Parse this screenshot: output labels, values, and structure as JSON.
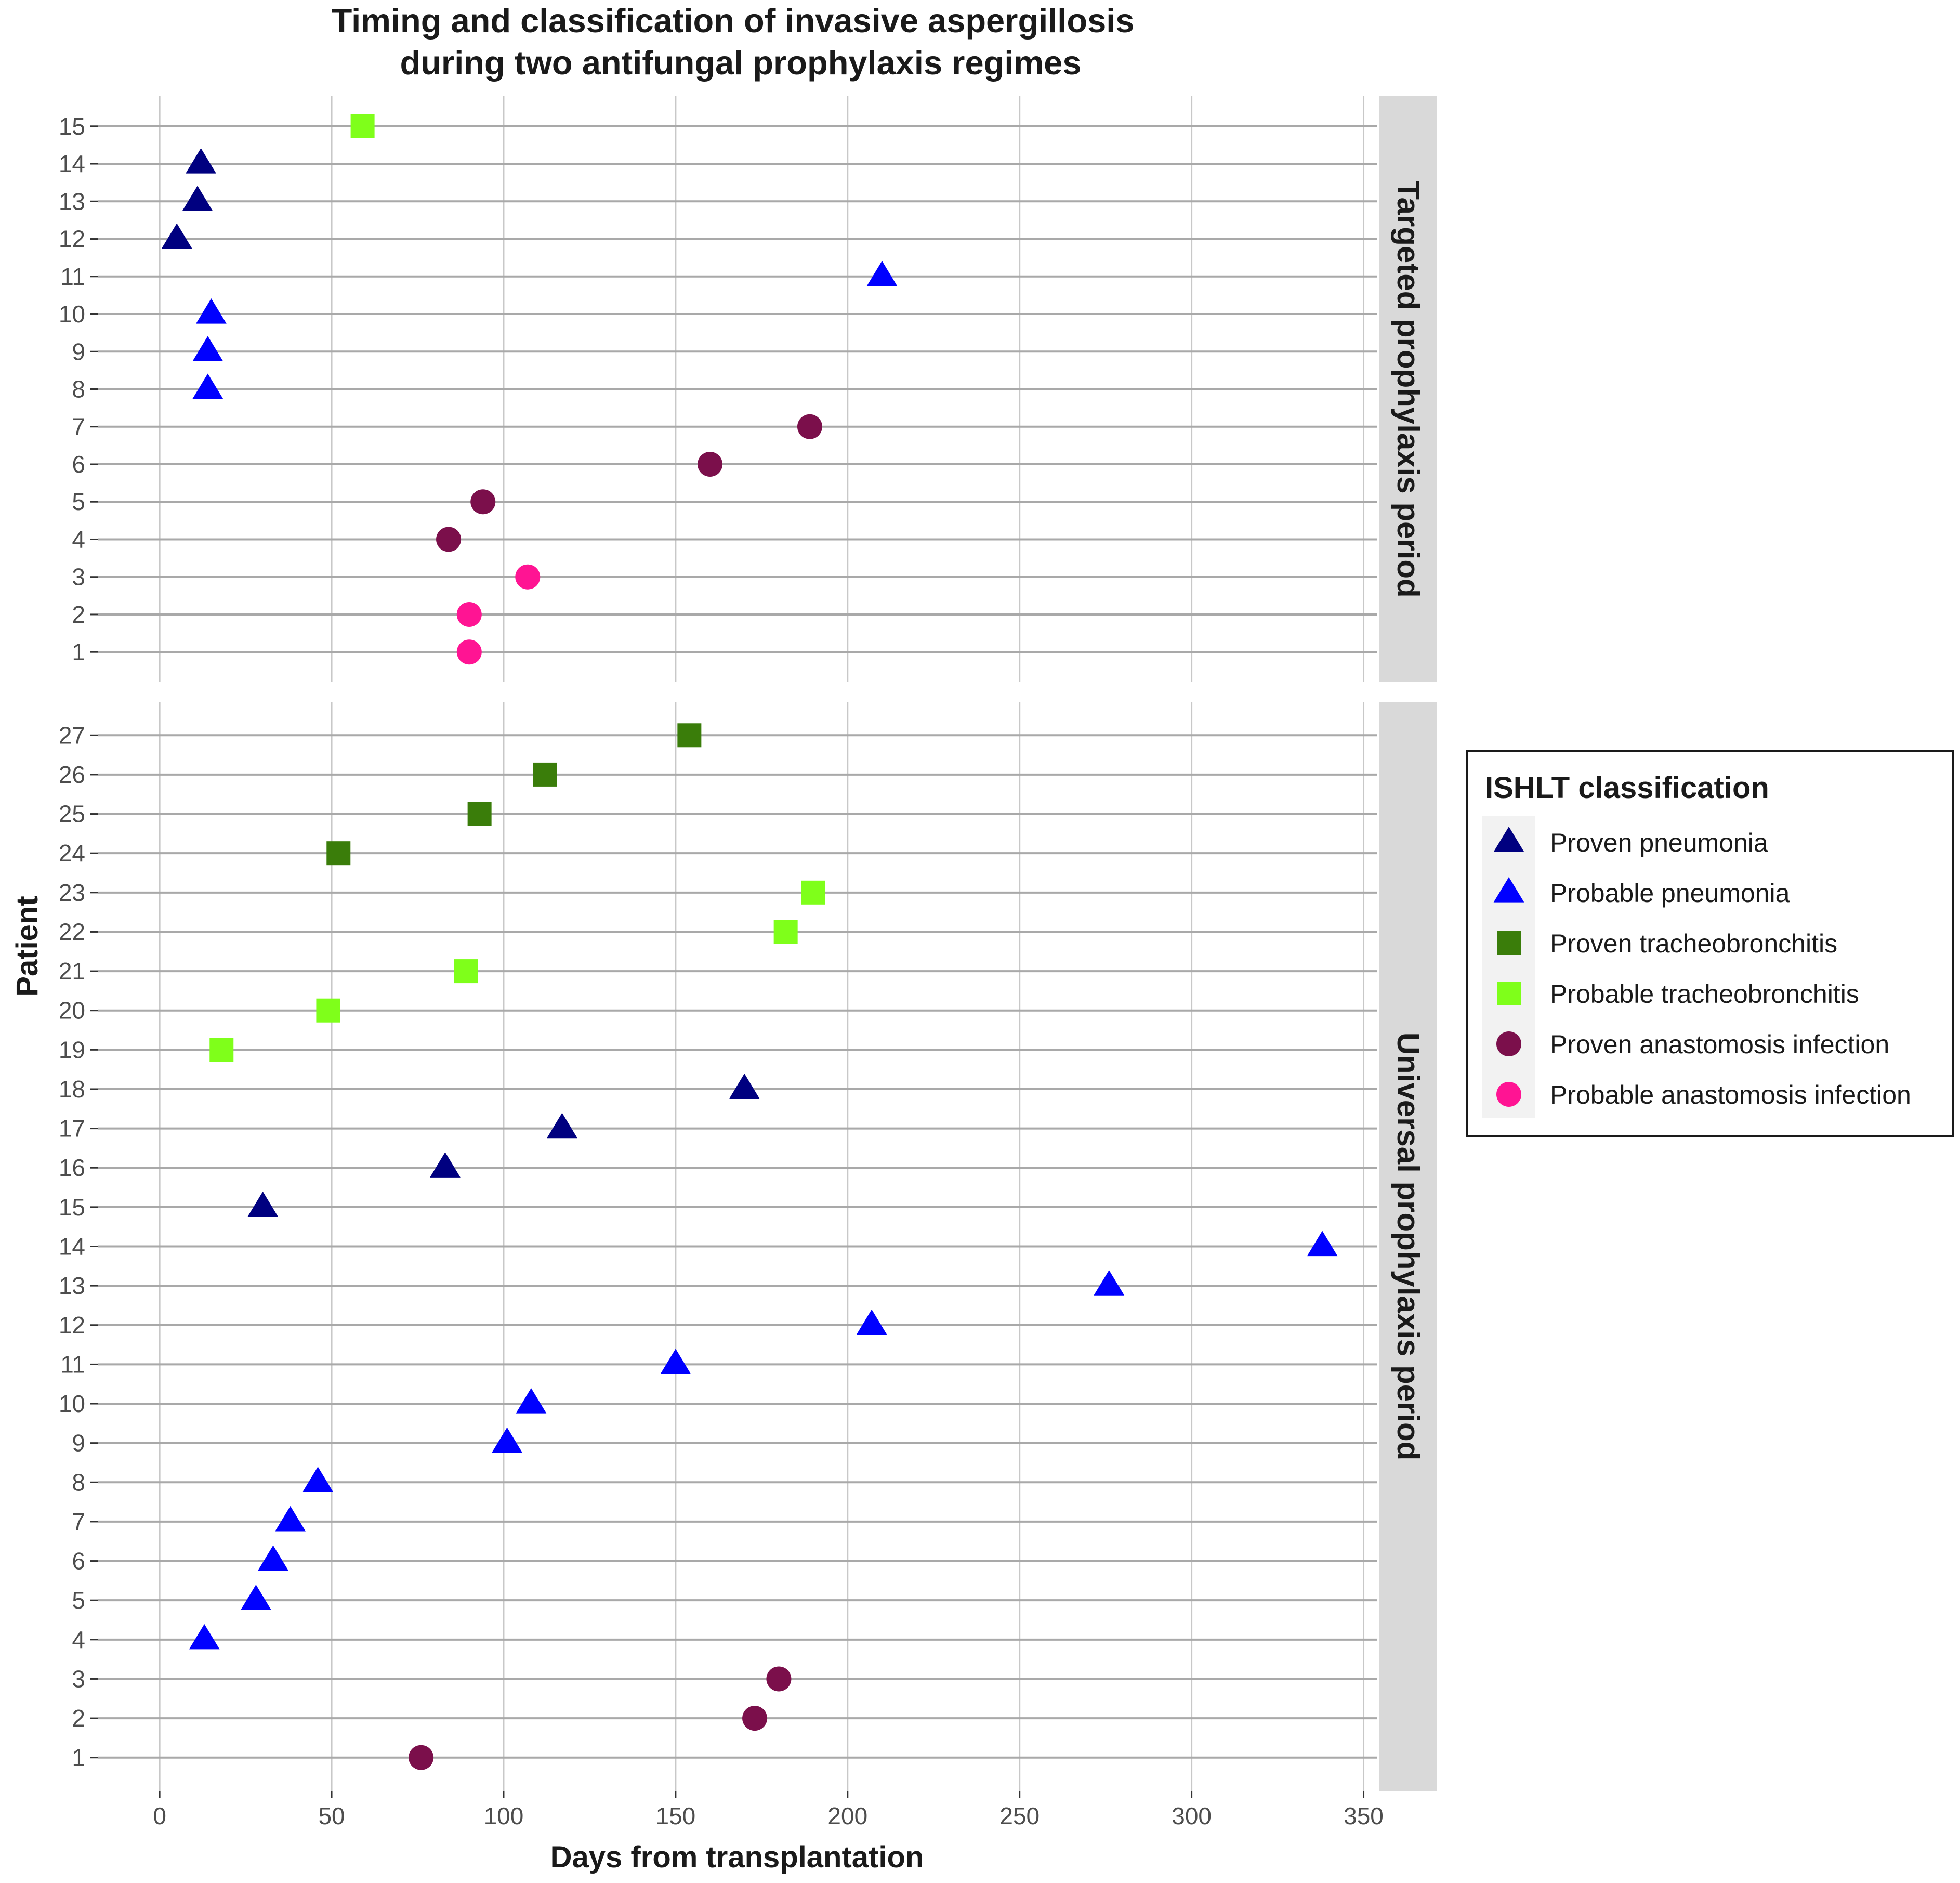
{
  "chart_data": {
    "type": "scatter",
    "title_line1": "Timing and classification of invasive aspergillosis",
    "title_line2": "during two antifungal prophylaxis regimes",
    "xlabel": "Days from transplantation",
    "ylabel": "Patient",
    "xlim": [
      -18,
      354
    ],
    "x_ticks": [
      0,
      50,
      100,
      150,
      200,
      250,
      300,
      350
    ],
    "legend": {
      "title": "ISHLT classification",
      "position": "right",
      "entries": [
        {
          "name": "Proven pneumonia",
          "color": "#000080",
          "shape": "triangle"
        },
        {
          "name": "Probable pneumonia",
          "color": "#0000ff",
          "shape": "triangle"
        },
        {
          "name": "Proven tracheobronchitis",
          "color": "#3a7d0a",
          "shape": "square"
        },
        {
          "name": "Probable tracheobronchitis",
          "color": "#7fff1a",
          "shape": "square"
        },
        {
          "name": "Proven anastomosis infection",
          "color": "#7b0f4b",
          "shape": "circle"
        },
        {
          "name": "Probable anastomosis infection",
          "color": "#ff1493",
          "shape": "circle"
        }
      ]
    },
    "panels": [
      {
        "strip": "Targeted prophylaxis period",
        "ylim": [
          0.2,
          15.8
        ],
        "y_ticks": [
          1,
          2,
          3,
          4,
          5,
          6,
          7,
          8,
          9,
          10,
          11,
          12,
          13,
          14,
          15
        ],
        "points": [
          {
            "patient": 1,
            "day": 90,
            "class": "Probable anastomosis infection"
          },
          {
            "patient": 2,
            "day": 90,
            "class": "Probable anastomosis infection"
          },
          {
            "patient": 3,
            "day": 107,
            "class": "Probable anastomosis infection"
          },
          {
            "patient": 4,
            "day": 84,
            "class": "Proven anastomosis infection"
          },
          {
            "patient": 5,
            "day": 94,
            "class": "Proven anastomosis infection"
          },
          {
            "patient": 6,
            "day": 160,
            "class": "Proven anastomosis infection"
          },
          {
            "patient": 7,
            "day": 189,
            "class": "Proven anastomosis infection"
          },
          {
            "patient": 8,
            "day": 14,
            "class": "Probable pneumonia"
          },
          {
            "patient": 9,
            "day": 14,
            "class": "Probable pneumonia"
          },
          {
            "patient": 10,
            "day": 15,
            "class": "Probable pneumonia"
          },
          {
            "patient": 11,
            "day": 210,
            "class": "Probable pneumonia"
          },
          {
            "patient": 12,
            "day": 5,
            "class": "Proven pneumonia"
          },
          {
            "patient": 13,
            "day": 11,
            "class": "Proven pneumonia"
          },
          {
            "patient": 14,
            "day": 12,
            "class": "Proven pneumonia"
          },
          {
            "patient": 15,
            "day": 59,
            "class": "Probable tracheobronchitis"
          }
        ]
      },
      {
        "strip": "Universal prophylaxis period",
        "ylim": [
          0.15,
          27.85
        ],
        "y_ticks": [
          1,
          2,
          3,
          4,
          5,
          6,
          7,
          8,
          9,
          10,
          11,
          12,
          13,
          14,
          15,
          16,
          17,
          18,
          19,
          20,
          21,
          22,
          23,
          24,
          25,
          26,
          27
        ],
        "points": [
          {
            "patient": 1,
            "day": 76,
            "class": "Proven anastomosis infection"
          },
          {
            "patient": 2,
            "day": 173,
            "class": "Proven anastomosis infection"
          },
          {
            "patient": 3,
            "day": 180,
            "class": "Proven anastomosis infection"
          },
          {
            "patient": 4,
            "day": 13,
            "class": "Probable pneumonia"
          },
          {
            "patient": 5,
            "day": 28,
            "class": "Probable pneumonia"
          },
          {
            "patient": 6,
            "day": 33,
            "class": "Probable pneumonia"
          },
          {
            "patient": 7,
            "day": 38,
            "class": "Probable pneumonia"
          },
          {
            "patient": 8,
            "day": 46,
            "class": "Probable pneumonia"
          },
          {
            "patient": 9,
            "day": 101,
            "class": "Probable pneumonia"
          },
          {
            "patient": 10,
            "day": 108,
            "class": "Probable pneumonia"
          },
          {
            "patient": 11,
            "day": 150,
            "class": "Probable pneumonia"
          },
          {
            "patient": 12,
            "day": 207,
            "class": "Probable pneumonia"
          },
          {
            "patient": 13,
            "day": 276,
            "class": "Probable pneumonia"
          },
          {
            "patient": 14,
            "day": 338,
            "class": "Probable pneumonia"
          },
          {
            "patient": 15,
            "day": 30,
            "class": "Proven pneumonia"
          },
          {
            "patient": 16,
            "day": 83,
            "class": "Proven pneumonia"
          },
          {
            "patient": 17,
            "day": 117,
            "class": "Proven pneumonia"
          },
          {
            "patient": 18,
            "day": 170,
            "class": "Proven pneumonia"
          },
          {
            "patient": 19,
            "day": 18,
            "class": "Probable tracheobronchitis"
          },
          {
            "patient": 20,
            "day": 49,
            "class": "Probable tracheobronchitis"
          },
          {
            "patient": 21,
            "day": 89,
            "class": "Probable tracheobronchitis"
          },
          {
            "patient": 22,
            "day": 182,
            "class": "Probable tracheobronchitis"
          },
          {
            "patient": 23,
            "day": 190,
            "class": "Probable tracheobronchitis"
          },
          {
            "patient": 24,
            "day": 52,
            "class": "Proven tracheobronchitis"
          },
          {
            "patient": 25,
            "day": 93,
            "class": "Proven tracheobronchitis"
          },
          {
            "patient": 26,
            "day": 112,
            "class": "Proven tracheobronchitis"
          },
          {
            "patient": 27,
            "day": 154,
            "class": "Proven tracheobronchitis"
          }
        ]
      }
    ]
  }
}
